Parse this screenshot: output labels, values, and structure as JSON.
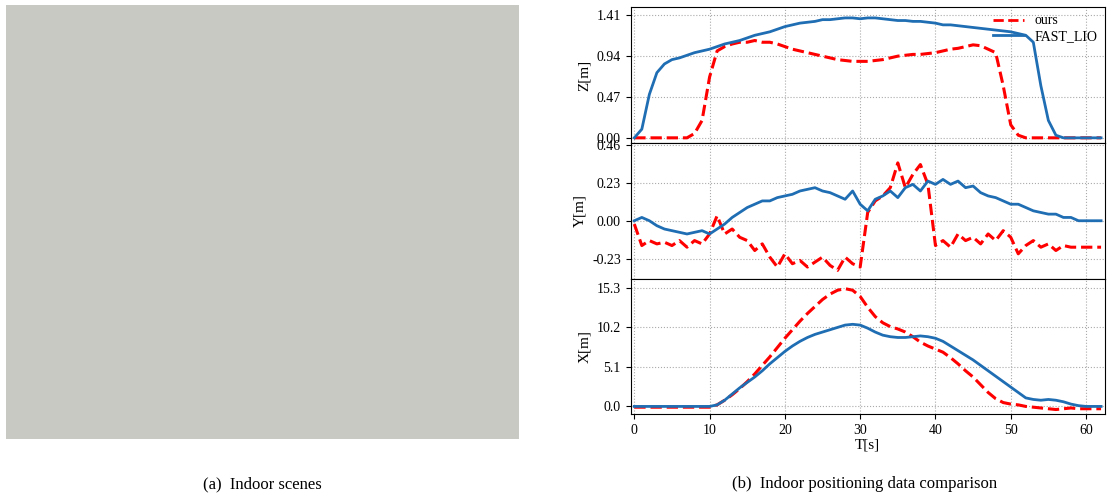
{
  "chart_data": [
    {
      "type": "line",
      "y_label": "Z[m]",
      "xlim": [
        -0.5,
        62.5
      ],
      "xticks": [
        0,
        10,
        20,
        30,
        40,
        50,
        60
      ],
      "ylim": [
        -0.06,
        1.5
      ],
      "yticks": [
        {
          "value": 0,
          "label": "0.00"
        },
        0.47,
        0.94,
        1.41
      ],
      "grid": true,
      "legend": "upper right",
      "tick_labels": "y",
      "x": [
        0,
        1,
        2,
        3,
        4,
        5,
        6,
        7,
        8,
        9,
        10,
        11,
        12,
        13,
        14,
        15,
        16,
        17,
        18,
        19,
        20,
        21,
        22,
        23,
        24,
        25,
        26,
        27,
        28,
        29,
        30,
        31,
        32,
        33,
        34,
        35,
        36,
        37,
        38,
        39,
        40,
        41,
        42,
        43,
        44,
        45,
        46,
        47,
        48,
        49,
        50,
        51,
        52,
        53,
        54,
        55,
        56,
        57,
        58,
        59,
        60,
        61,
        62
      ],
      "series": [
        {
          "name": "ours",
          "color": "#ff0000",
          "line_style": "dashed",
          "values": [
            0,
            0,
            0,
            0,
            0,
            0,
            0,
            0,
            0.05,
            0.2,
            0.7,
            1.0,
            1.05,
            1.08,
            1.1,
            1.1,
            1.12,
            1.1,
            1.1,
            1.08,
            1.05,
            1.02,
            1.0,
            0.98,
            0.96,
            0.94,
            0.92,
            0.9,
            0.89,
            0.88,
            0.88,
            0.88,
            0.89,
            0.9,
            0.92,
            0.94,
            0.95,
            0.96,
            0.96,
            0.97,
            0.98,
            1.0,
            1.02,
            1.03,
            1.05,
            1.07,
            1.06,
            1.02,
            0.98,
            0.6,
            0.15,
            0.03,
            0,
            0,
            0,
            0,
            0,
            0,
            0,
            0,
            0,
            0,
            0
          ]
        },
        {
          "name": "FAST_LIO",
          "color": "#1f6db3",
          "line_style": "solid",
          "values": [
            0,
            0.1,
            0.5,
            0.75,
            0.85,
            0.9,
            0.92,
            0.95,
            0.98,
            1.0,
            1.02,
            1.05,
            1.08,
            1.1,
            1.12,
            1.15,
            1.18,
            1.2,
            1.22,
            1.25,
            1.28,
            1.3,
            1.32,
            1.33,
            1.34,
            1.36,
            1.36,
            1.37,
            1.38,
            1.38,
            1.37,
            1.38,
            1.38,
            1.37,
            1.36,
            1.35,
            1.35,
            1.34,
            1.34,
            1.33,
            1.32,
            1.3,
            1.3,
            1.29,
            1.28,
            1.27,
            1.26,
            1.25,
            1.24,
            1.23,
            1.22,
            1.2,
            1.18,
            1.1,
            0.6,
            0.2,
            0.03,
            0,
            0,
            0,
            0,
            0,
            0
          ]
        }
      ]
    },
    {
      "type": "line",
      "y_label": "Y[m]",
      "xlim": [
        -0.5,
        62.5
      ],
      "xticks": [
        0,
        10,
        20,
        30,
        40,
        50,
        60
      ],
      "ylim": [
        -0.35,
        0.47
      ],
      "yticks": [
        -0.23,
        {
          "value": 0,
          "label": "0.00"
        },
        0.23,
        0.46
      ],
      "grid": true,
      "tick_labels": "y",
      "x": [
        0,
        1,
        2,
        3,
        4,
        5,
        6,
        7,
        8,
        9,
        10,
        11,
        12,
        13,
        14,
        15,
        16,
        17,
        18,
        19,
        20,
        21,
        22,
        23,
        24,
        25,
        26,
        27,
        28,
        29,
        30,
        31,
        32,
        33,
        34,
        35,
        36,
        37,
        38,
        39,
        40,
        41,
        42,
        43,
        44,
        45,
        46,
        47,
        48,
        49,
        50,
        51,
        52,
        53,
        54,
        55,
        56,
        57,
        58,
        59,
        60,
        61,
        62
      ],
      "series": [
        {
          "name": "ours",
          "color": "#ff0000",
          "line_style": "dashed",
          "values": [
            -0.02,
            -0.15,
            -0.12,
            -0.14,
            -0.13,
            -0.15,
            -0.12,
            -0.16,
            -0.12,
            -0.14,
            -0.08,
            0.03,
            -0.08,
            -0.05,
            -0.1,
            -0.12,
            -0.18,
            -0.14,
            -0.22,
            -0.28,
            -0.2,
            -0.26,
            -0.24,
            -0.28,
            -0.25,
            -0.22,
            -0.27,
            -0.3,
            -0.22,
            -0.26,
            -0.28,
            0.05,
            0.12,
            0.15,
            0.2,
            0.35,
            0.2,
            0.28,
            0.34,
            0.22,
            -0.15,
            -0.12,
            -0.16,
            -0.08,
            -0.12,
            -0.1,
            -0.14,
            -0.08,
            -0.12,
            -0.06,
            -0.1,
            -0.2,
            -0.15,
            -0.12,
            -0.16,
            -0.14,
            -0.18,
            -0.15,
            -0.16,
            -0.16,
            -0.16,
            -0.16,
            -0.16
          ]
        },
        {
          "name": "FAST_LIO",
          "color": "#1f6db3",
          "line_style": "solid",
          "values": [
            0.0,
            0.02,
            0.0,
            -0.03,
            -0.05,
            -0.06,
            -0.07,
            -0.08,
            -0.07,
            -0.06,
            -0.08,
            -0.05,
            -0.02,
            0.02,
            0.05,
            0.08,
            0.1,
            0.12,
            0.12,
            0.14,
            0.15,
            0.16,
            0.18,
            0.19,
            0.2,
            0.18,
            0.17,
            0.15,
            0.13,
            0.18,
            0.1,
            0.06,
            0.13,
            0.15,
            0.18,
            0.14,
            0.2,
            0.22,
            0.18,
            0.24,
            0.22,
            0.25,
            0.22,
            0.24,
            0.2,
            0.21,
            0.17,
            0.15,
            0.14,
            0.12,
            0.1,
            0.1,
            0.08,
            0.06,
            0.05,
            0.04,
            0.04,
            0.02,
            0.02,
            0.0,
            0.0,
            0.0,
            0.0
          ]
        }
      ]
    },
    {
      "type": "line",
      "y_label": "X[m]",
      "x_label": "T[s]",
      "xlim": [
        -0.5,
        62.5
      ],
      "xticks": [
        0,
        10,
        20,
        30,
        40,
        50,
        60
      ],
      "ylim": [
        -1.0,
        16.5
      ],
      "yticks": [
        {
          "value": 0,
          "label": "0.0"
        },
        5.1,
        10.2,
        15.3
      ],
      "grid": true,
      "x": [
        0,
        1,
        2,
        3,
        4,
        5,
        6,
        7,
        8,
        9,
        10,
        11,
        12,
        13,
        14,
        15,
        16,
        17,
        18,
        19,
        20,
        21,
        22,
        23,
        24,
        25,
        26,
        27,
        28,
        29,
        30,
        31,
        32,
        33,
        34,
        35,
        36,
        37,
        38,
        39,
        40,
        41,
        42,
        43,
        44,
        45,
        46,
        47,
        48,
        49,
        50,
        51,
        52,
        53,
        54,
        55,
        56,
        57,
        58,
        59,
        60,
        61,
        62
      ],
      "series": [
        {
          "name": "ours",
          "color": "#ff0000",
          "line_style": "dashed",
          "values": [
            -0.1,
            -0.1,
            -0.1,
            -0.1,
            -0.1,
            -0.1,
            -0.1,
            -0.1,
            -0.1,
            -0.1,
            -0.1,
            0.2,
            0.8,
            1.5,
            2.3,
            3.2,
            4.2,
            5.3,
            6.4,
            7.6,
            8.8,
            9.9,
            11.0,
            12.0,
            12.9,
            13.8,
            14.5,
            15.0,
            15.2,
            15.0,
            14.2,
            12.8,
            11.6,
            10.8,
            10.3,
            10.0,
            9.6,
            9.0,
            8.3,
            7.8,
            7.4,
            7.0,
            6.3,
            5.5,
            4.6,
            3.8,
            2.8,
            1.8,
            1.0,
            0.5,
            0.3,
            0.2,
            0.0,
            -0.1,
            -0.2,
            -0.3,
            -0.4,
            -0.3,
            -0.2,
            -0.3,
            -0.3,
            -0.3,
            -0.3
          ]
        },
        {
          "name": "FAST_LIO",
          "color": "#1f6db3",
          "line_style": "solid",
          "values": [
            0,
            0,
            0,
            0,
            0,
            0,
            0,
            0,
            0,
            0,
            0,
            0.2,
            0.8,
            1.6,
            2.4,
            3.1,
            3.8,
            4.6,
            5.5,
            6.3,
            7.1,
            7.8,
            8.4,
            8.9,
            9.3,
            9.6,
            9.9,
            10.2,
            10.5,
            10.6,
            10.5,
            10.1,
            9.6,
            9.2,
            9.0,
            8.9,
            8.9,
            9.0,
            9.1,
            9.0,
            8.8,
            8.4,
            7.8,
            7.2,
            6.6,
            6.0,
            5.3,
            4.6,
            3.9,
            3.2,
            2.5,
            1.8,
            1.1,
            0.9,
            0.8,
            0.9,
            0.8,
            0.6,
            0.3,
            0.1,
            0,
            0,
            0
          ]
        }
      ]
    }
  ],
  "captions": [
    "(a)  Indoor scenes",
    "(b)  Indoor positioning data comparison"
  ]
}
